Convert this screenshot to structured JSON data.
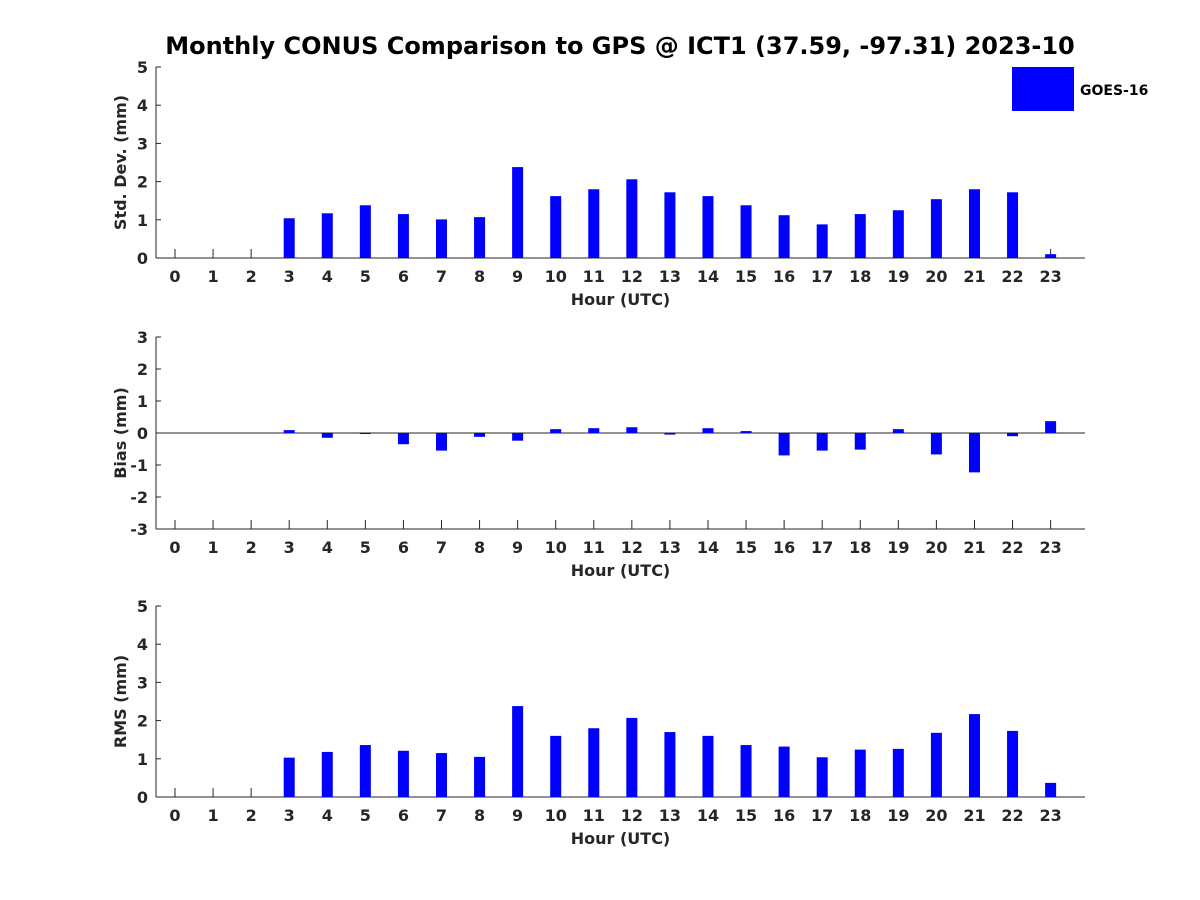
{
  "chart_data": {
    "title": "Monthly CONUS Comparison to GPS @ ICT1 (37.59, -97.31) 2023-10",
    "type": "bar",
    "legend": {
      "placement": "top-right",
      "entries": [
        "GOES-16"
      ]
    },
    "series_color": "#0000ff",
    "categories": [
      "0",
      "1",
      "2",
      "3",
      "4",
      "5",
      "6",
      "7",
      "8",
      "9",
      "10",
      "11",
      "12",
      "13",
      "14",
      "15",
      "16",
      "17",
      "18",
      "19",
      "20",
      "21",
      "22",
      "23"
    ],
    "panels": [
      {
        "type": "bar",
        "series_name": "GOES-16",
        "xlabel": "Hour (UTC)",
        "ylabel": "Std. Dev. (mm)",
        "ylim": [
          0,
          5
        ],
        "yticks": [
          "0",
          "1",
          "2",
          "3",
          "4",
          "5"
        ],
        "values": [
          null,
          null,
          null,
          1.04,
          1.17,
          1.38,
          1.15,
          1.01,
          1.07,
          2.38,
          1.62,
          1.8,
          2.06,
          1.72,
          1.62,
          1.38,
          1.12,
          0.88,
          1.15,
          1.25,
          1.54,
          1.8,
          1.72,
          0.1
        ]
      },
      {
        "type": "bar",
        "series_name": "GOES-16",
        "xlabel": "Hour (UTC)",
        "ylabel": "Bias (mm)",
        "ylim": [
          -3,
          3
        ],
        "yticks": [
          "-3",
          "-2",
          "-1",
          "0",
          "1",
          "2",
          "3"
        ],
        "values": [
          null,
          null,
          null,
          0.09,
          -0.15,
          -0.02,
          -0.35,
          -0.55,
          -0.12,
          -0.24,
          0.12,
          0.15,
          0.18,
          -0.05,
          0.15,
          0.06,
          -0.7,
          -0.55,
          -0.52,
          0.12,
          -0.67,
          -1.23,
          -0.1,
          0.37
        ]
      },
      {
        "type": "bar",
        "series_name": "GOES-16",
        "xlabel": "Hour (UTC)",
        "ylabel": "RMS (mm)",
        "ylim": [
          0,
          5
        ],
        "yticks": [
          "0",
          "1",
          "2",
          "3",
          "4",
          "5"
        ],
        "values": [
          null,
          null,
          null,
          1.03,
          1.18,
          1.36,
          1.21,
          1.15,
          1.05,
          2.38,
          1.6,
          1.8,
          2.07,
          1.7,
          1.6,
          1.36,
          1.32,
          1.04,
          1.24,
          1.26,
          1.68,
          2.17,
          1.73,
          0.37
        ]
      }
    ]
  }
}
